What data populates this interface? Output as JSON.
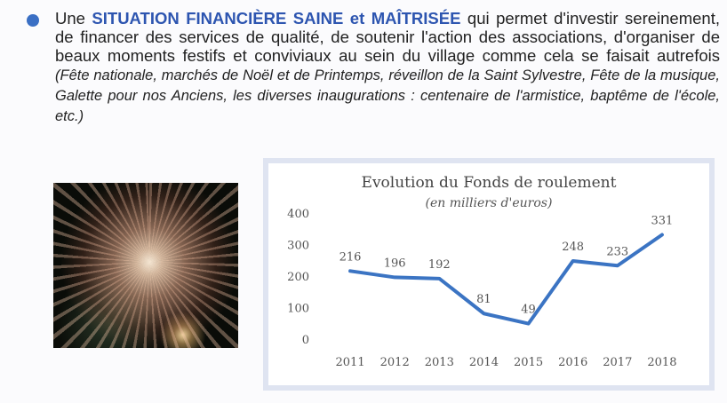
{
  "text": {
    "prefix": "Une ",
    "highlight": "SITUATION FINANCIÈRE SAINE et MAÎTRISÉE",
    "body": " qui permet d'investir sereinement, de financer des services de qualité, de soutenir l'action des associations, d'organiser de beaux moments festifs et conviviaux au sein du village comme cela se faisait autrefois ",
    "italic": "(Fête nationale, marchés de Noël et de Printemps, réveillon de la Saint Sylvestre, Fête de la musique, Galette pour nos Anciens, les diverses inaugurations : centenaire de l'armistice, baptême de l'école, etc.)"
  },
  "colors": {
    "bullet": "#3a6fc4",
    "highlight": "#2d55b0",
    "line": "#3b74c3",
    "chart_border": "#dfe4f1"
  },
  "photo": {
    "subject": "fireworks"
  },
  "chart_data": {
    "type": "line",
    "title": "Evolution du Fonds de roulement",
    "subtitle": "(en milliers d'euros)",
    "categories": [
      "2011",
      "2012",
      "2013",
      "2014",
      "2015",
      "2016",
      "2017",
      "2018"
    ],
    "series": [
      {
        "values": [
          216,
          196,
          192,
          81,
          49,
          248,
          233,
          331
        ]
      }
    ],
    "data_labels": [
      "216",
      "196",
      "192",
      "81",
      "49",
      "248",
      "233",
      "331"
    ],
    "ylim": [
      0,
      400
    ],
    "yticks": [
      "0",
      "100",
      "200",
      "300",
      "400"
    ],
    "grid": false,
    "legend": "none"
  }
}
